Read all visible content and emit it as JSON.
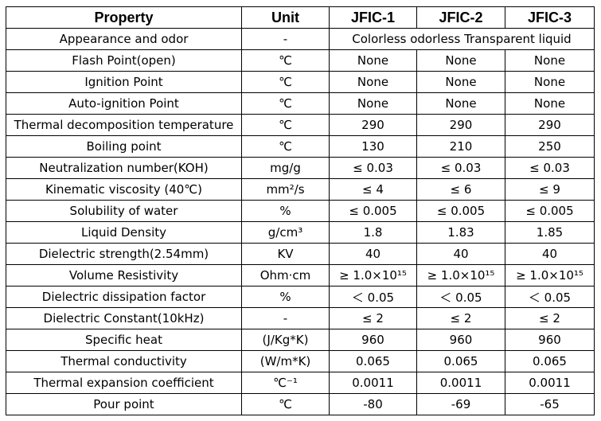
{
  "table": {
    "header": [
      "Property",
      "Unit",
      "JFIC-1",
      "JFIC-2",
      "JFIC-3"
    ],
    "rows": [
      [
        "Appearance and odor",
        "-",
        "Colorless odorless Transparent liquid"
      ],
      [
        "Flash Point(open)",
        "℃",
        "None",
        "None",
        "None"
      ],
      [
        "Ignition Point",
        "℃",
        "None",
        "None",
        "None"
      ],
      [
        "Auto-ignition Point",
        "℃",
        "None",
        "None",
        "None"
      ],
      [
        "Thermal decomposition temperature",
        "℃",
        "290",
        "290",
        "290"
      ],
      [
        "Boiling point",
        "℃",
        "130",
        "210",
        "250"
      ],
      [
        "Neutralization number(KOH)",
        "mg/g",
        "≤ 0.03",
        "≤ 0.03",
        "≤ 0.03"
      ],
      [
        "Kinematic viscosity (40℃)",
        "mm²/s",
        "≤ 4",
        "≤ 6",
        "≤ 9"
      ],
      [
        "Solubility of water",
        "%",
        "≤ 0.005",
        "≤ 0.005",
        "≤ 0.005"
      ],
      [
        "Liquid Density",
        "g/cm³",
        "1.8",
        "1.83",
        "1.85"
      ],
      [
        "Dielectric strength(2.54mm)",
        "KV",
        "40",
        "40",
        "40"
      ],
      [
        "Volume Resistivity",
        "Ohm·cm",
        "≥ 1.0×10¹⁵",
        "≥ 1.0×10¹⁵",
        "≥ 1.0×10¹⁵"
      ],
      [
        "Dielectric dissipation factor",
        "%",
        "＜ 0.05",
        "＜ 0.05",
        "＜ 0.05"
      ],
      [
        "Dielectric Constant(10kHz)",
        "-",
        "≤ 2",
        "≤ 2",
        "≤ 2"
      ],
      [
        "Specific heat",
        "(J/Kg*K)",
        "960",
        "960",
        "960"
      ],
      [
        "Thermal conductivity",
        "(W/m*K)",
        "0.065",
        "0.065",
        "0.065"
      ],
      [
        "Thermal expansion coefficient",
        "℃⁻¹",
        "0.0011",
        "0.0011",
        "0.0011"
      ],
      [
        "Pour point",
        "℃",
        "-80",
        "-69",
        "-65"
      ]
    ]
  }
}
